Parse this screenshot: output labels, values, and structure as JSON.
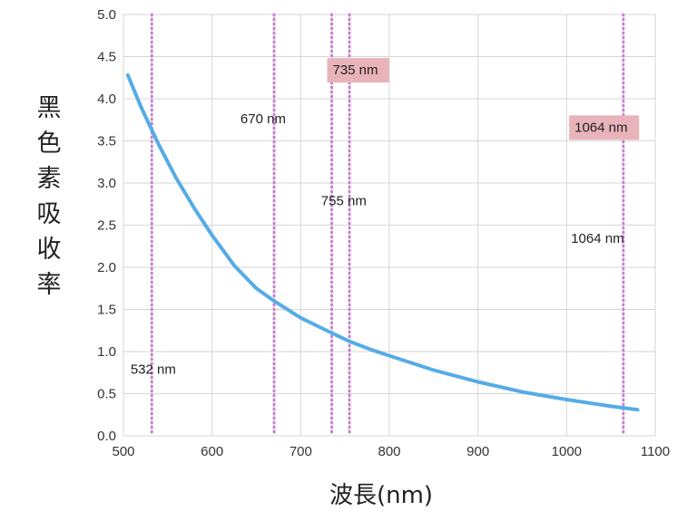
{
  "chart_data": {
    "type": "line",
    "xlabel": "波長(nm)",
    "ylabel": "黑色素吸收率",
    "xlim": [
      500,
      1100
    ],
    "ylim": [
      0.0,
      5.0
    ],
    "xticks": [
      "500",
      "600",
      "700",
      "800",
      "900",
      "1000",
      "1100"
    ],
    "yticks": [
      "0.0",
      "0.5",
      "1.0",
      "1.5",
      "2.0",
      "2.5",
      "3.0",
      "3.5",
      "4.0",
      "4.5",
      "5.0"
    ],
    "grid": true,
    "series": [
      {
        "x": [
          505,
          520,
          540,
          560,
          580,
          600,
          625,
          650,
          670,
          700,
          735,
          755,
          780,
          800,
          850,
          900,
          950,
          1000,
          1050,
          1080
        ],
        "y": [
          4.28,
          3.9,
          3.45,
          3.05,
          2.7,
          2.38,
          2.02,
          1.75,
          1.6,
          1.4,
          1.22,
          1.12,
          1.02,
          0.95,
          0.78,
          0.64,
          0.52,
          0.43,
          0.35,
          0.31
        ],
        "color": "#55ace6"
      }
    ],
    "vlines": [
      {
        "x": 532,
        "color": "#c783cf"
      },
      {
        "x": 670,
        "color": "#c783cf"
      },
      {
        "x": 735,
        "color": "#c783cf"
      },
      {
        "x": 755,
        "color": "#c783cf"
      },
      {
        "x": 1064,
        "color": "#c783cf"
      }
    ],
    "annotations": [
      {
        "text": "532 nm",
        "x": 508,
        "y": 0.75,
        "highlight": false
      },
      {
        "text": "670 nm",
        "x": 632,
        "y": 3.72,
        "highlight": false
      },
      {
        "text": "735 nm",
        "x": 736,
        "y": 4.3,
        "highlight": true
      },
      {
        "text": "755 nm",
        "x": 723,
        "y": 2.75,
        "highlight": false
      },
      {
        "text": "1064 nm",
        "x": 1009,
        "y": 3.62,
        "highlight": true
      },
      {
        "text": "1064 nm",
        "x": 1005,
        "y": 2.3,
        "highlight": false
      }
    ],
    "highlight_color": "#e8b3b9"
  }
}
